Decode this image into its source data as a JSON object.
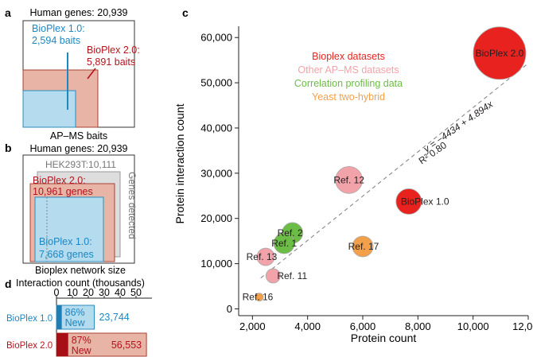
{
  "panel_a": {
    "label": "a",
    "header": "Human genes: 20,939",
    "v1_label_line1": "BioPlex 1.0:",
    "v1_label_line2": "2,594 baits",
    "v2_label_line1": "BioPlex 2.0:",
    "v2_label_line2": "5,891 baits",
    "footer": "AP–MS baits"
  },
  "panel_b": {
    "label": "b",
    "header": "Human genes: 20,939",
    "hek_label": "HEK293T:10,111",
    "side_label": "Genes detected",
    "v2_label_line1": "BioPlex 2.0:",
    "v2_label_line2": "10,961 genes",
    "v1_label_line1": "BioPlex 1.0:",
    "v1_label_line2": "7,668 genes",
    "footer": "Bioplex network size"
  },
  "panel_d": {
    "label": "d",
    "title": "Interaction count (thousands)",
    "ticks": [
      "0",
      "10",
      "20",
      "30",
      "40",
      "50"
    ],
    "xlim": [
      0,
      60
    ],
    "bars": [
      {
        "name": "BioPlex 1.0",
        "total": 23.744,
        "new_fraction": 0.86,
        "pct_line1": "86%",
        "pct_line2": "New",
        "value_label": "23,744"
      },
      {
        "name": "BioPlex 2.0",
        "total": 56.553,
        "new_fraction": 0.87,
        "pct_line1": "87%",
        "pct_line2": "New",
        "value_label": "56,553"
      }
    ]
  },
  "chart_data": {
    "label": "c",
    "type": "scatter",
    "xlabel": "Protein count",
    "ylabel": "Protein interaction count",
    "xlim": [
      1500,
      12000
    ],
    "ylim": [
      -1500,
      62500
    ],
    "x_ticks": [
      2000,
      4000,
      6000,
      8000,
      10000,
      12000
    ],
    "x_tick_labels": [
      "2,000",
      "4,000",
      "6,000",
      "8,000",
      "10,000",
      "12,000"
    ],
    "y_ticks": [
      0,
      10000,
      20000,
      30000,
      40000,
      50000,
      60000
    ],
    "y_tick_labels": [
      "0",
      "10,000",
      "20,000",
      "30,000",
      "40,000",
      "50,000",
      "60,000"
    ],
    "legend": [
      {
        "label": "Bioplex datasets",
        "color": "#e8231f"
      },
      {
        "label": "Other AP–MS datasets",
        "color": "#f2a3a9"
      },
      {
        "label": "Correlation profiling data",
        "color": "#6cbd45"
      },
      {
        "label": "Yeast two-hybrid",
        "color": "#f4a04a"
      }
    ],
    "fit_label_line1": "y = −4434 + 4.894x",
    "fit_label_line2": "R² 0.80",
    "fit": {
      "intercept": -4434,
      "slope": 4.894
    },
    "points": [
      {
        "label": "BioPlex 2.0",
        "x": 10961,
        "y": 56553,
        "group": "Bioplex datasets",
        "color": "#e8231f",
        "radius": 33
      },
      {
        "label": "BioPlex 1.0",
        "x": 7668,
        "y": 23744,
        "group": "Bioplex datasets",
        "color": "#e8231f",
        "radius": 16
      },
      {
        "label": "Ref. 12",
        "x": 5500,
        "y": 28500,
        "group": "Other AP–MS datasets",
        "color": "#f2a3a9",
        "radius": 17
      },
      {
        "label": "Ref. 13",
        "x": 2480,
        "y": 11500,
        "group": "Other AP–MS datasets",
        "color": "#f2a3a9",
        "radius": 11
      },
      {
        "label": "Ref. 11",
        "x": 2750,
        "y": 7300,
        "group": "Other AP–MS datasets",
        "color": "#f2a3a9",
        "radius": 9
      },
      {
        "label": "Ref. 16",
        "x": 2250,
        "y": 2600,
        "group": "Other AP–MS datasets",
        "color": "#f4a04a",
        "radius": 5
      },
      {
        "label": "Ref. 2",
        "x": 3450,
        "y": 16800,
        "group": "Correlation profiling data",
        "color": "#6cbd45",
        "radius": 13
      },
      {
        "label": "Ref. 1",
        "x": 3150,
        "y": 14500,
        "group": "Correlation profiling data",
        "color": "#6cbd45",
        "radius": 13
      },
      {
        "label": "Ref. 17",
        "x": 6000,
        "y": 13800,
        "group": "Yeast two-hybrid",
        "color": "#f4a04a",
        "radius": 13
      }
    ]
  }
}
